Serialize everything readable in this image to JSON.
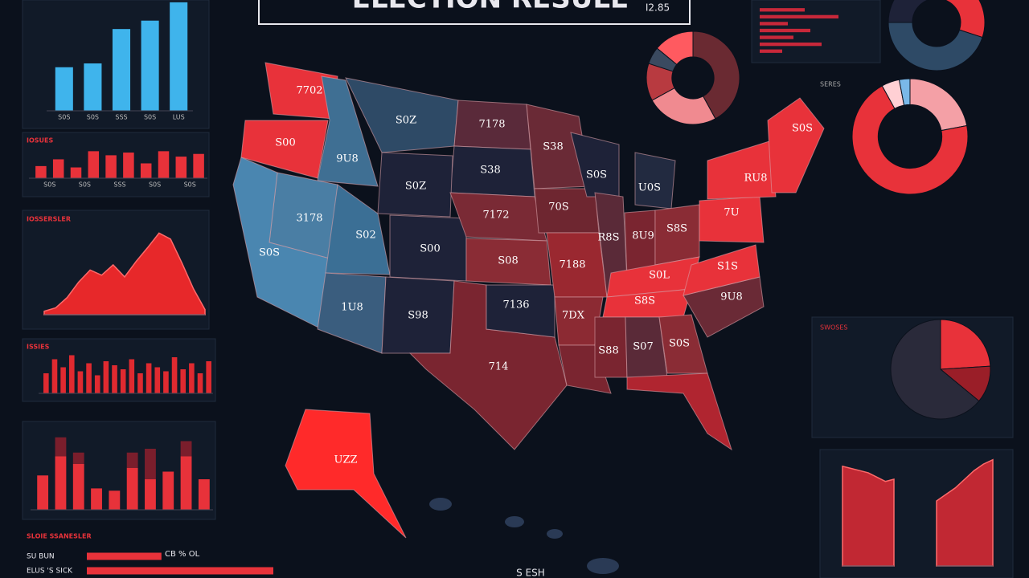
{
  "header": {
    "title": "ELECTION RESULE",
    "code": "I2.85",
    "footnote": "S ESH"
  },
  "map": {
    "labels": [
      "7702",
      "S00",
      "9U8",
      "S0Z",
      "7178",
      "S38",
      "S0Z",
      "3178",
      "S0S",
      "S02",
      "S00",
      "7172",
      "S08",
      "1U8",
      "S98",
      "714",
      "7136",
      "S38",
      "70S",
      "7188",
      "7DX",
      "S0S",
      "U0S",
      "R8S",
      "8U9",
      "S8S",
      "S0L",
      "S8S",
      "S88",
      "S07",
      "S0S",
      "9U8",
      "S1S",
      "7U",
      "RU8",
      "S0S",
      "UZZ"
    ]
  },
  "side_labels": {
    "right_top": "SERES",
    "right_mid": "SWOSES",
    "annotation": "CB % OL"
  },
  "chart_data": [
    {
      "type": "bar",
      "categories": [
        "S0S",
        "S0S",
        "SSS",
        "S0S",
        "LUS"
      ],
      "values": [
        57,
        62,
        107,
        118,
        142
      ],
      "ylim": [
        0,
        145
      ],
      "color": "#3fb4ec"
    },
    {
      "type": "bar",
      "title": "IOSUES",
      "categories": [
        "S0S",
        null,
        "S0S",
        null,
        "SSS",
        null,
        "S0S",
        null,
        "S0S",
        null
      ],
      "values": [
        9,
        14,
        8,
        20,
        17,
        19,
        11,
        20,
        16,
        18
      ],
      "ylim": [
        0,
        22
      ],
      "color": "#e8323a"
    },
    {
      "type": "area",
      "title": "IOSSERSLER",
      "x": [
        0,
        1,
        2,
        3,
        4,
        5,
        6,
        7,
        8,
        9,
        10,
        11,
        12,
        13,
        14
      ],
      "values": [
        4,
        8,
        20,
        38,
        52,
        46,
        58,
        44,
        62,
        78,
        95,
        88,
        60,
        30,
        6
      ],
      "xlim": [
        0,
        14
      ],
      "ylim": [
        0,
        100
      ],
      "color": "#ff2a2a"
    },
    {
      "type": "bar",
      "title": "ISSIES",
      "values": [
        20,
        34,
        26,
        38,
        22,
        30,
        18,
        32,
        28,
        24,
        34,
        20,
        30,
        26,
        22,
        36,
        24,
        30,
        20,
        32
      ],
      "ylim": [
        0,
        40
      ],
      "color": "#e02a30"
    },
    {
      "type": "bar",
      "stacked": true,
      "series": [
        {
          "color": "#e8323a",
          "values": [
            45,
            70,
            60,
            28,
            25,
            55,
            40,
            50,
            70,
            40
          ]
        },
        {
          "color": "#7a1e2c",
          "values": [
            0,
            25,
            15,
            0,
            0,
            20,
            40,
            0,
            20,
            0
          ]
        }
      ],
      "ylim": [
        0,
        100
      ]
    },
    {
      "type": "hbar",
      "values": [
        40,
        70,
        25,
        45,
        30,
        55,
        20
      ],
      "xlim": [
        0,
        100
      ],
      "color": "#c8283a"
    },
    {
      "type": "pie",
      "hole": 0.45,
      "values": [
        42,
        25,
        13,
        6,
        14
      ],
      "colors": [
        "#6a2a32",
        "#f08a90",
        "#b83a40",
        "#3a4a60",
        "#ff5a60"
      ]
    },
    {
      "type": "pie",
      "hole": 0.5,
      "values": [
        30,
        45,
        25
      ],
      "colors": [
        "#e8323a",
        "#2e4a66",
        "#1e2238"
      ]
    },
    {
      "type": "pie",
      "hole": 0.55,
      "values": [
        22,
        70,
        5,
        3
      ],
      "colors": [
        "#f4a0a6",
        "#e8323a",
        "#ffd0d4",
        "#7ab8e8"
      ]
    },
    {
      "type": "pie",
      "values": [
        24,
        12,
        64
      ],
      "colors": [
        "#e8323a",
        "#9a1e28",
        "#2a2a3a"
      ]
    },
    {
      "type": "area",
      "x": [
        0,
        1,
        2,
        3,
        4,
        5,
        6
      ],
      "values": [
        92,
        90,
        88,
        86,
        82,
        78,
        80
      ],
      "xlim": [
        0,
        6
      ],
      "ylim": [
        0,
        100
      ],
      "color": "#d52a34"
    },
    {
      "type": "area",
      "x": [
        0,
        1,
        2,
        3,
        4,
        5,
        6
      ],
      "values": [
        60,
        66,
        72,
        80,
        88,
        94,
        98
      ],
      "xlim": [
        0,
        6
      ],
      "ylim": [
        0,
        100
      ],
      "color": "#d52a34"
    },
    {
      "type": "hbar",
      "title": "SLOIE SSANESLER",
      "categories": [
        "SU BUN",
        "ELUS 'S SICK"
      ],
      "values": [
        40,
        100
      ],
      "xlim": [
        0,
        100
      ],
      "color": "#e8323a"
    }
  ]
}
